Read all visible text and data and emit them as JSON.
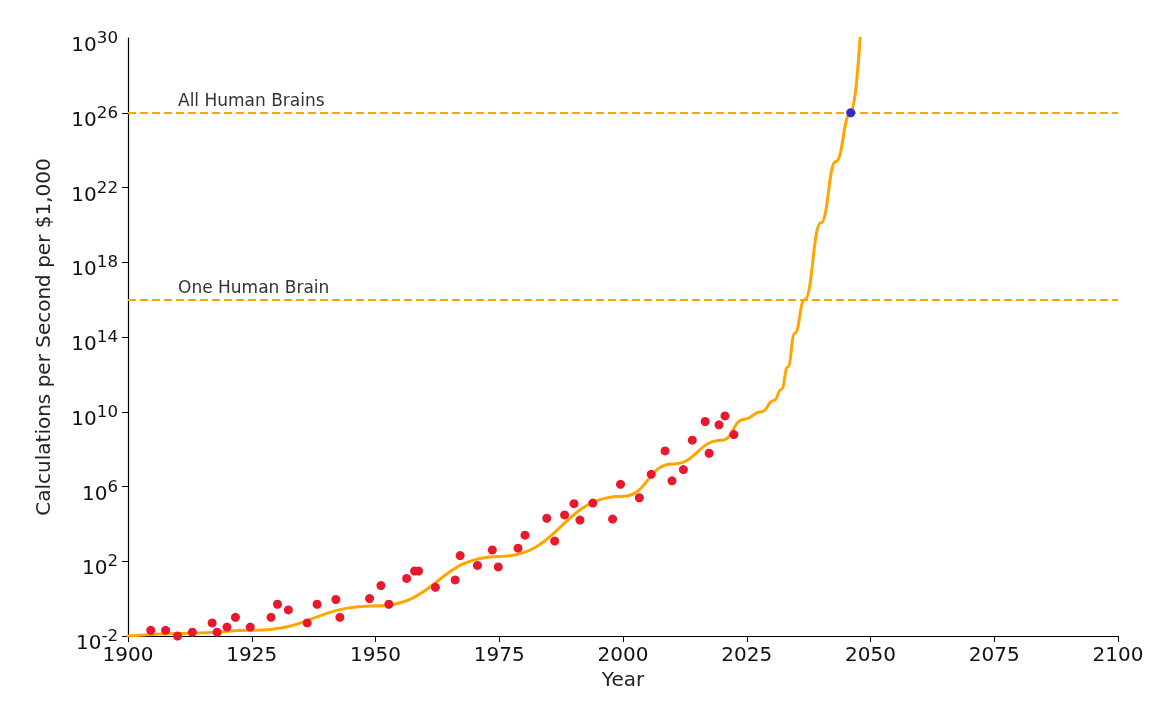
{
  "chart_data": {
    "type": "scatter",
    "xlabel": "Year",
    "ylabel": "Calculations per Second per $1,000",
    "log": "y",
    "grid": false,
    "xlim": [
      1900,
      2100
    ],
    "xticks": [
      1900,
      1925,
      1950,
      1975,
      2000,
      2025,
      2050,
      2075,
      2100
    ],
    "ylim": [
      0.01,
      1e+30
    ],
    "yticks": [
      {
        "value": 0.01,
        "label": "10$^{-2}$"
      },
      {
        "value": 100,
        "label": "10$^{2}$"
      },
      {
        "value": 1000000.0,
        "label": "10$^{6}$"
      },
      {
        "value": 10000000000.0,
        "label": "10$^{10}$"
      },
      {
        "value": 100000000000000.0,
        "label": "10$^{14}$"
      },
      {
        "value": 1e+18,
        "label": "10$^{18}$"
      },
      {
        "value": 1e+22,
        "label": "10$^{22}$"
      },
      {
        "value": 1e+26,
        "label": "10$^{26}$"
      },
      {
        "value": 1e+30,
        "label": "10$^{30}$"
      }
    ],
    "ref_lines": [
      {
        "axis": "y",
        "value": 1e+26,
        "label": "All Human Brains",
        "color": "#ffa500",
        "line_style": "dashed"
      },
      {
        "axis": "y",
        "value": 1e+16,
        "label": "One Human Brain",
        "color": "#ffa500",
        "line_style": "dashed"
      }
    ],
    "series": [
      {
        "type": "line",
        "color": "#ffa500",
        "marker": "none",
        "line_style": "solid",
        "x": [
          1900,
          1913,
          1925,
          1950,
          1975,
          2000,
          2010,
          2020,
          2024.5,
          2028,
          2030.5,
          2032,
          2033.3,
          2034.7,
          2036.7,
          2040,
          2043,
          2046,
          2047.9
        ],
        "values": [
          0.01,
          0.014,
          0.02,
          0.4,
          180,
          300000.0,
          16000000.0,
          300000000.0,
          4000000000.0,
          10000000000.0,
          40000000000.0,
          160000000000.0,
          2500000000000.0,
          160000000000000.0,
          1e+16,
          1.3e+20,
          2.5e+23,
          1e+26,
          1e+30
        ]
      },
      {
        "color": "#e8192c",
        "marker": "circle",
        "x": [
          1904.6,
          1907.6,
          1910,
          1913,
          1917,
          1918,
          1920,
          1921.7,
          1924.7,
          1928.9,
          1930.2,
          1932.4,
          1936.2,
          1938.2,
          1942,
          1942.8,
          1948.8,
          1951.1,
          1952.7,
          1956.3,
          1957.9,
          1958.7,
          1962.1,
          1966.1,
          1967.1,
          1970.6,
          1973.6,
          1974.8,
          1978.8,
          1980.2,
          1984.6,
          1986.2,
          1988.2,
          1990.1,
          1991.3,
          1993.9,
          1997.9,
          1999.5,
          2003.3,
          2005.7,
          2008.5,
          2009.9,
          2012.2,
          2014,
          2016.6,
          2017.4,
          2019.4,
          2020.6,
          2022.4
        ],
        "values": [
          0.02,
          0.02,
          0.01,
          0.016,
          0.05,
          0.016,
          0.03,
          0.1,
          0.03,
          0.1,
          0.5,
          0.25,
          0.05,
          0.5,
          0.9,
          0.1,
          1,
          5,
          0.5,
          12,
          30,
          30,
          4,
          10,
          200,
          60,
          400,
          50,
          500,
          2500,
          20000,
          1200,
          30000,
          120000,
          16000,
          130000,
          18000,
          1300000,
          250000,
          4500000,
          80000000,
          2000000,
          8000000,
          300000000,
          3000000000,
          60000000,
          2000000000,
          6000000000,
          600000000
        ]
      },
      {
        "color": "#3030c0",
        "marker": "circle",
        "x": [
          2046
        ],
        "values": [
          1e+26
        ]
      }
    ]
  }
}
